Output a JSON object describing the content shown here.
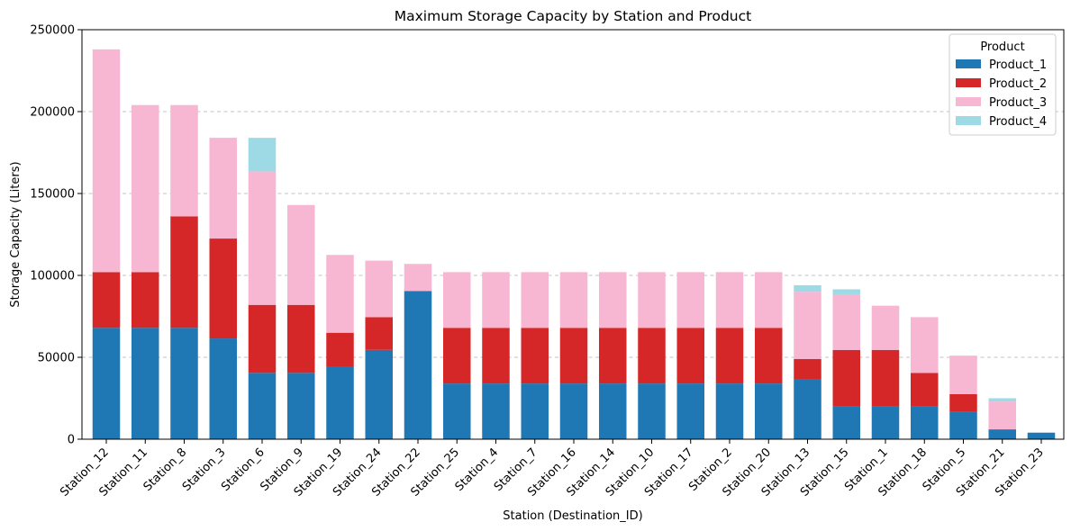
{
  "chart_data": {
    "type": "bar",
    "stacked": true,
    "title": "Maximum Storage Capacity by Station and Product",
    "xlabel": "Station (Destination_ID)",
    "ylabel": "Storage Capacity (Liters)",
    "ylim": [
      0,
      250000
    ],
    "yticks": [
      0,
      50000,
      100000,
      150000,
      200000,
      250000
    ],
    "grid": "y-dashed",
    "legend": {
      "title": "Product",
      "position": "top-right"
    },
    "categories": [
      "Station_12",
      "Station_11",
      "Station_8",
      "Station_3",
      "Station_6",
      "Station_9",
      "Station_19",
      "Station_24",
      "Station_22",
      "Station_25",
      "Station_4",
      "Station_7",
      "Station_16",
      "Station_14",
      "Station_10",
      "Station_17",
      "Station_2",
      "Station_20",
      "Station_13",
      "Station_15",
      "Station_1",
      "Station_18",
      "Station_5",
      "Station_21",
      "Station_23"
    ],
    "series": [
      {
        "name": "Product_1",
        "color": "#1f77b4",
        "values": [
          68000,
          68000,
          68000,
          61500,
          40500,
          40500,
          44500,
          54500,
          90500,
          34000,
          34000,
          34000,
          34000,
          34000,
          34000,
          34000,
          34000,
          34000,
          36500,
          20000,
          20000,
          20000,
          17000,
          6000,
          4000
        ]
      },
      {
        "name": "Product_2",
        "color": "#d62728",
        "values": [
          34000,
          34000,
          68000,
          61000,
          41500,
          41500,
          20500,
          20000,
          0,
          34000,
          34000,
          34000,
          34000,
          34000,
          34000,
          34000,
          34000,
          34000,
          12500,
          34500,
          34500,
          20500,
          10500,
          0,
          0
        ]
      },
      {
        "name": "Product_3",
        "color": "#f7b6d2",
        "values": [
          136000,
          102000,
          68000,
          61500,
          81500,
          61000,
          47500,
          34500,
          16500,
          34000,
          34000,
          34000,
          34000,
          34000,
          34000,
          34000,
          34000,
          34000,
          41000,
          34000,
          27000,
          34000,
          23500,
          17000,
          0
        ]
      },
      {
        "name": "Product_4",
        "color": "#9edae5",
        "values": [
          0,
          0,
          0,
          0,
          20500,
          0,
          0,
          0,
          0,
          0,
          0,
          0,
          0,
          0,
          0,
          0,
          0,
          0,
          4000,
          3000,
          0,
          0,
          0,
          2000,
          0
        ]
      }
    ]
  }
}
